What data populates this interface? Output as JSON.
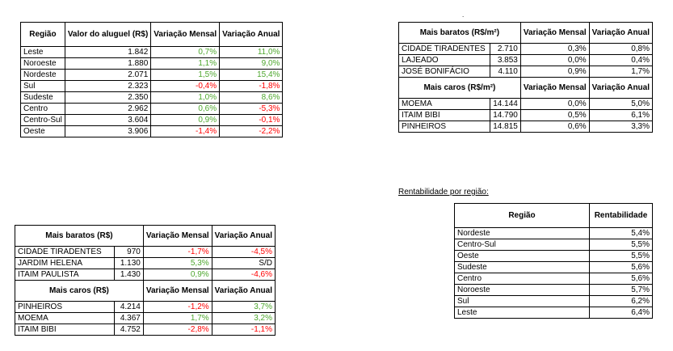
{
  "dot_mark": ".",
  "regiao_table": {
    "headers": [
      "Região",
      "Valor do aluguel (R$)",
      "Variação Mensal",
      "Variação Anual"
    ],
    "rows": [
      [
        "Leste",
        "1.842",
        "0,7%",
        "11,0%"
      ],
      [
        "Noroeste",
        "1.880",
        "1,1%",
        "9,0%"
      ],
      [
        "Nordeste",
        "2.071",
        "1,5%",
        "15,4%"
      ],
      [
        "Sul",
        "2.323",
        "-0,4%",
        "-1,8%"
      ],
      [
        "Sudeste",
        "2.350",
        "1,0%",
        "8,6%"
      ],
      [
        "Centro",
        "2.962",
        "0,6%",
        "-5,3%"
      ],
      [
        "Centro-Sul",
        "3.604",
        "0,9%",
        "-0,1%"
      ],
      [
        "Oeste",
        "3.906",
        "-1,4%",
        "-2,2%"
      ]
    ],
    "colors": {
      "positive": "#4ea72e",
      "negative": "#ff0000"
    }
  },
  "m2_table": {
    "baratos_header": "Mais baratos (R$/m²)",
    "caros_header": "Mais caros (R$/m²)",
    "var_mensal": "Variação Mensal",
    "var_anual": "Variação Anual",
    "baratos": [
      [
        "CIDADE TIRADENTES",
        "2.710",
        "0,3%",
        "0,8%"
      ],
      [
        "LAJEADO",
        "3.853",
        "0,0%",
        "0,4%"
      ],
      [
        "JOSÉ BONIFÁCIO",
        "4.110",
        "0,9%",
        "1,7%"
      ]
    ],
    "caros": [
      [
        "MOEMA",
        "14.144",
        "0,0%",
        "5,0%"
      ],
      [
        "ITAIM BIBI",
        "14.790",
        "0,5%",
        "6,1%"
      ],
      [
        "PINHEIROS",
        "14.815",
        "0,6%",
        "3,3%"
      ]
    ]
  },
  "rs_table": {
    "baratos_header": "Mais baratos (R$)",
    "caros_header": "Mais caros (R$)",
    "var_mensal": "Variação Mensal",
    "var_anual": "Variação Anual",
    "baratos": [
      [
        "CIDADE TIRADENTES",
        "970",
        "-1,7%",
        "-4,5%"
      ],
      [
        "JARDIM HELENA",
        "1.130",
        "5,3%",
        "S/D"
      ],
      [
        "ITAIM PAULISTA",
        "1.430",
        "0,9%",
        "-4,6%"
      ]
    ],
    "caros": [
      [
        "PINHEIROS",
        "4.214",
        "-1,2%",
        "3,7%"
      ],
      [
        "MOEMA",
        "4.367",
        "1,7%",
        "3,2%"
      ],
      [
        "ITAIM BIBI",
        "4.752",
        "-2,8%",
        "-1,1%"
      ]
    ]
  },
  "rentabilidade": {
    "caption": "Rentabilidade por região:",
    "headers": [
      "Região",
      "Rentabilidade"
    ],
    "rows": [
      [
        "Nordeste",
        "5,4%"
      ],
      [
        "Centro-Sul",
        "5,5%"
      ],
      [
        "Oeste",
        "5,5%"
      ],
      [
        "Sudeste",
        "5,6%"
      ],
      [
        "Centro",
        "5,6%"
      ],
      [
        "Noroeste",
        "5,7%"
      ],
      [
        "Sul",
        "6,2%"
      ],
      [
        "Leste",
        "6,4%"
      ]
    ]
  }
}
